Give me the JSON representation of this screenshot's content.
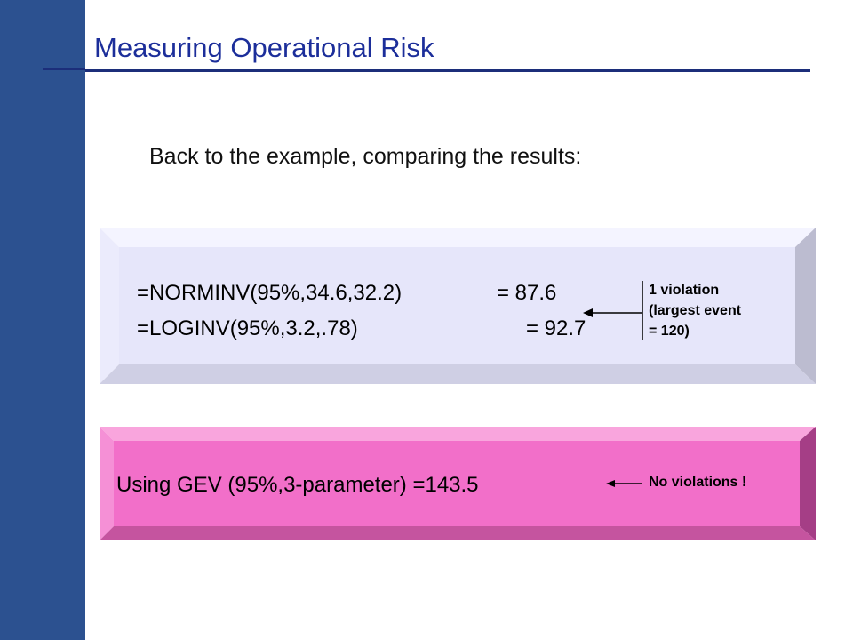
{
  "slide": {
    "title": "Measuring Operational Risk",
    "subtitle": "Back to the example, comparing the results:"
  },
  "box_lognormal": {
    "line1_formula": "=NORMINV(95%,34.6,32.2)",
    "line1_result": "= 87.6",
    "line2_formula": "=LOGINV(95%,3.2,.78)",
    "line2_result": "= 92.7",
    "note_lines": [
      "1 violation",
      "(largest event",
      "= 120)"
    ]
  },
  "box_gev": {
    "text": "Using GEV (95%,3-parameter) =143.5",
    "note": "No violations !"
  },
  "colors": {
    "sidebar": "#2c5190",
    "title": "#1c2e9a",
    "box1_face": "#e6e6fa",
    "box2_face": "#f26fc9"
  }
}
